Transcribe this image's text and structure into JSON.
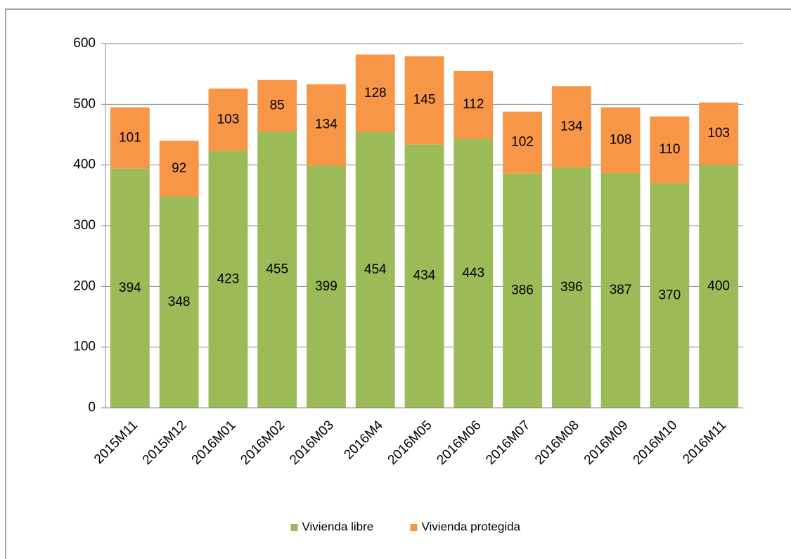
{
  "chart_data": {
    "type": "bar",
    "stacked": true,
    "categories": [
      "2015M11",
      "2015M12",
      "2016M01",
      "2016M02",
      "2016M03",
      "2016M4",
      "2016M05",
      "2016M06",
      "2016M07",
      "2016M08",
      "2016M09",
      "2016M10",
      "2016M11"
    ],
    "series": [
      {
        "name": "Vivienda libre",
        "color": "#9bbb59",
        "values": [
          394,
          348,
          423,
          455,
          399,
          454,
          434,
          443,
          386,
          396,
          387,
          370,
          400
        ]
      },
      {
        "name": "Vivienda protegida",
        "color": "#f79646",
        "values": [
          101,
          92,
          103,
          85,
          134,
          128,
          145,
          112,
          102,
          134,
          108,
          110,
          103
        ]
      }
    ],
    "ylim": [
      0,
      600
    ],
    "yticks": [
      0,
      100,
      200,
      300,
      400,
      500,
      600
    ],
    "grid": true,
    "legend": "bottom"
  }
}
